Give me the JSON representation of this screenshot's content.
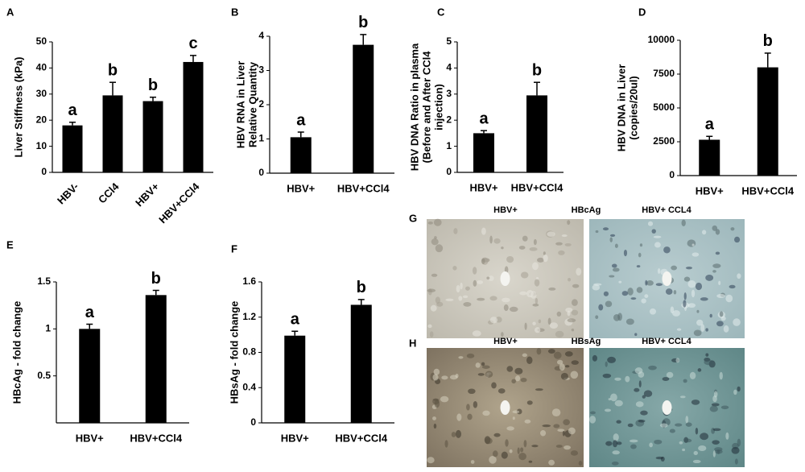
{
  "chart_data": [
    {
      "type": "bar",
      "panel": "A",
      "ylabel": [
        "Liver Stiffness (kPa)"
      ],
      "categories": [
        "HBV-",
        "CCl4",
        "HBV+",
        "HBV+CCl4"
      ],
      "values": [
        18,
        29.5,
        27.3,
        42.3
      ],
      "errors": [
        1.2,
        5,
        1.5,
        2.5
      ],
      "letters": [
        "a",
        "b",
        "b",
        "c"
      ],
      "color": "#000000",
      "ylim": [
        0,
        50
      ],
      "yticks": [
        0,
        10,
        20,
        30,
        40,
        50
      ]
    },
    {
      "type": "bar",
      "panel": "B",
      "ylabel": [
        "HBV RNA in Liver",
        "Relative Quantity"
      ],
      "categories": [
        "HBV+",
        "HBV+CCl4"
      ],
      "values": [
        1.05,
        3.75
      ],
      "errors": [
        0.15,
        0.3
      ],
      "letters": [
        "a",
        "b"
      ],
      "color": "#000000",
      "ylim": [
        0,
        4
      ],
      "yticks": [
        0,
        1,
        2,
        3,
        4
      ]
    },
    {
      "type": "bar",
      "panel": "C",
      "ylabel": [
        "HBV DNA Ratio in plasma",
        "(Before and After  CCl4",
        "injection)"
      ],
      "categories": [
        "HBV+",
        "HBV+CCl4"
      ],
      "values": [
        1.5,
        2.95
      ],
      "errors": [
        0.1,
        0.5
      ],
      "letters": [
        "a",
        "b"
      ],
      "color": "#000000",
      "ylim": [
        0,
        5
      ],
      "yticks": [
        0,
        1,
        2,
        3,
        4,
        5
      ]
    },
    {
      "type": "bar",
      "panel": "D",
      "ylabel": [
        "HBV DNA in Liver",
        "(copies/20ul)"
      ],
      "categories": [
        "HBV+",
        "HBV+CCl4"
      ],
      "values": [
        2650,
        8000
      ],
      "errors": [
        250,
        1050
      ],
      "letters": [
        "a",
        "b"
      ],
      "color": "#000000",
      "ylim": [
        0,
        10000
      ],
      "yticks": [
        0,
        2500,
        5000,
        7500,
        10000
      ]
    },
    {
      "type": "bar",
      "panel": "E",
      "ylabel": [
        "HBcAg - fold change"
      ],
      "categories": [
        "HBV+",
        "HBV+CCl4"
      ],
      "values": [
        1.0,
        1.36
      ],
      "errors": [
        0.05,
        0.05
      ],
      "letters": [
        "a",
        "b"
      ],
      "color": "#000000",
      "ylim": [
        0,
        1.5
      ],
      "yticks": [
        0.5,
        1,
        1.5
      ]
    },
    {
      "type": "bar",
      "panel": "F",
      "ylabel": [
        "HBsAg  - fold change"
      ],
      "categories": [
        "HBV+",
        "HBV+CCl4"
      ],
      "values": [
        0.99,
        1.34
      ],
      "errors": [
        0.05,
        0.06
      ],
      "letters": [
        "a",
        "b"
      ],
      "color": "#000000",
      "ylim": [
        0,
        1.6
      ],
      "yticks": [
        0,
        0.4,
        0.8,
        1.2,
        1.6
      ]
    }
  ],
  "micrographs": [
    {
      "panel": "G",
      "left": "HBV+",
      "middle": "HBcAg",
      "right": "HBV+ CCL4"
    },
    {
      "panel": "H",
      "left": "HBV+",
      "middle": "HBsAg",
      "right": "HBV+ CCL4"
    }
  ]
}
